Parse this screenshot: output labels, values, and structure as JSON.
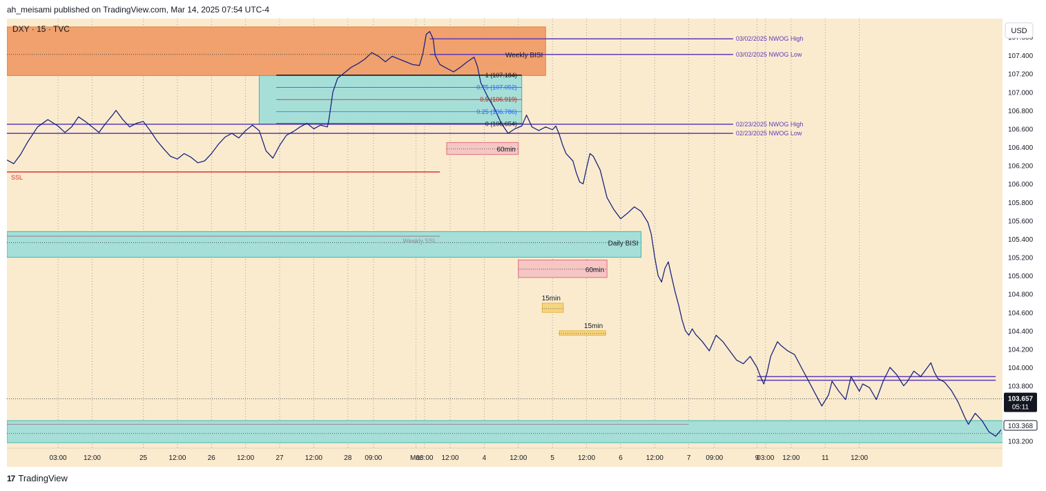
{
  "header": {
    "publish_line": "ah_meisami published on TradingView.com, Mar 14, 2025 07:54 UTC-4"
  },
  "footer": {
    "brand": "TradingView",
    "logo": "tradingview-logo-icon"
  },
  "chart_data": {
    "type": "line",
    "symbol_label": "DXY · 15 · TVC",
    "currency_button": "USD",
    "x_ticks": [
      {
        "label": "03:00",
        "t": 0.75
      },
      {
        "label": "12:00",
        "t": 1.25
      },
      {
        "label": "25",
        "t": 2
      },
      {
        "label": "12:00",
        "t": 2.5
      },
      {
        "label": "26",
        "t": 3
      },
      {
        "label": "12:00",
        "t": 3.5
      },
      {
        "label": "27",
        "t": 4
      },
      {
        "label": "12:00",
        "t": 4.5
      },
      {
        "label": "28",
        "t": 5
      },
      {
        "label": "09:00",
        "t": 5.375
      },
      {
        "label": "Mar",
        "t": 6
      },
      {
        "label": "03:00",
        "t": 6.125
      },
      {
        "label": "12:00",
        "t": 6.5
      },
      {
        "label": "4",
        "t": 7
      },
      {
        "label": "12:00",
        "t": 7.5
      },
      {
        "label": "5",
        "t": 8
      },
      {
        "label": "12:00",
        "t": 8.5
      },
      {
        "label": "6",
        "t": 9
      },
      {
        "label": "12:00",
        "t": 9.5
      },
      {
        "label": "7",
        "t": 10
      },
      {
        "label": "09:00",
        "t": 10.375
      },
      {
        "label": "9",
        "t": 11
      },
      {
        "label": "03:00",
        "t": 11.125
      },
      {
        "label": "12:00",
        "t": 11.5
      },
      {
        "label": "11",
        "t": 12
      },
      {
        "label": "12:00",
        "t": 12.5
      }
    ],
    "y_ticks": [
      "107.600",
      "107.400",
      "107.200",
      "107.000",
      "106.800",
      "106.600",
      "106.400",
      "106.200",
      "106.000",
      "105.800",
      "105.600",
      "105.400",
      "105.200",
      "105.000",
      "104.800",
      "104.600",
      "104.400",
      "104.200",
      "104.000",
      "103.800",
      "103.200"
    ],
    "y_range": [
      103.12,
      107.8
    ],
    "price_path": [
      [
        0.0,
        106.26
      ],
      [
        0.1,
        106.22
      ],
      [
        0.2,
        106.32
      ],
      [
        0.3,
        106.45
      ],
      [
        0.45,
        106.62
      ],
      [
        0.6,
        106.7
      ],
      [
        0.75,
        106.63
      ],
      [
        0.85,
        106.56
      ],
      [
        0.95,
        106.62
      ],
      [
        1.05,
        106.73
      ],
      [
        1.15,
        106.68
      ],
      [
        1.25,
        106.62
      ],
      [
        1.35,
        106.56
      ],
      [
        1.45,
        106.66
      ],
      [
        1.55,
        106.75
      ],
      [
        1.6,
        106.8
      ],
      [
        1.7,
        106.7
      ],
      [
        1.8,
        106.62
      ],
      [
        1.9,
        106.66
      ],
      [
        2.0,
        106.68
      ],
      [
        2.1,
        106.58
      ],
      [
        2.2,
        106.47
      ],
      [
        2.3,
        106.38
      ],
      [
        2.4,
        106.3
      ],
      [
        2.5,
        106.27
      ],
      [
        2.6,
        106.33
      ],
      [
        2.7,
        106.29
      ],
      [
        2.8,
        106.23
      ],
      [
        2.9,
        106.25
      ],
      [
        3.0,
        106.33
      ],
      [
        3.1,
        106.43
      ],
      [
        3.2,
        106.51
      ],
      [
        3.3,
        106.55
      ],
      [
        3.4,
        106.5
      ],
      [
        3.5,
        106.58
      ],
      [
        3.6,
        106.64
      ],
      [
        3.7,
        106.58
      ],
      [
        3.8,
        106.36
      ],
      [
        3.9,
        106.28
      ],
      [
        4.0,
        106.42
      ],
      [
        4.1,
        106.53
      ],
      [
        4.2,
        106.57
      ],
      [
        4.3,
        106.62
      ],
      [
        4.4,
        106.66
      ],
      [
        4.5,
        106.6
      ],
      [
        4.6,
        106.64
      ],
      [
        4.7,
        106.62
      ],
      [
        4.72,
        106.69
      ],
      [
        4.78,
        107.0
      ],
      [
        4.85,
        107.15
      ],
      [
        4.95,
        107.21
      ],
      [
        5.05,
        107.27
      ],
      [
        5.15,
        107.31
      ],
      [
        5.25,
        107.36
      ],
      [
        5.35,
        107.43
      ],
      [
        5.45,
        107.39
      ],
      [
        5.55,
        107.33
      ],
      [
        5.65,
        107.39
      ],
      [
        5.75,
        107.36
      ],
      [
        5.85,
        107.33
      ],
      [
        5.95,
        107.3
      ],
      [
        6.05,
        107.29
      ],
      [
        6.1,
        107.42
      ],
      [
        6.15,
        107.63
      ],
      [
        6.2,
        107.66
      ],
      [
        6.25,
        107.58
      ],
      [
        6.28,
        107.4
      ],
      [
        6.35,
        107.3
      ],
      [
        6.45,
        107.26
      ],
      [
        6.55,
        107.22
      ],
      [
        6.65,
        107.27
      ],
      [
        6.75,
        107.33
      ],
      [
        6.85,
        107.38
      ],
      [
        6.9,
        107.28
      ],
      [
        6.95,
        107.1
      ],
      [
        7.05,
        106.95
      ],
      [
        7.15,
        106.82
      ],
      [
        7.25,
        106.66
      ],
      [
        7.35,
        106.55
      ],
      [
        7.45,
        106.6
      ],
      [
        7.55,
        106.63
      ],
      [
        7.62,
        106.75
      ],
      [
        7.7,
        106.62
      ],
      [
        7.8,
        106.58
      ],
      [
        7.9,
        106.62
      ],
      [
        8.0,
        106.59
      ],
      [
        8.05,
        106.63
      ],
      [
        8.1,
        106.54
      ],
      [
        8.15,
        106.42
      ],
      [
        8.2,
        106.33
      ],
      [
        8.3,
        106.25
      ],
      [
        8.35,
        106.12
      ],
      [
        8.4,
        106.02
      ],
      [
        8.45,
        106.0
      ],
      [
        8.5,
        106.17
      ],
      [
        8.55,
        106.33
      ],
      [
        8.6,
        106.3
      ],
      [
        8.7,
        106.15
      ],
      [
        8.8,
        105.85
      ],
      [
        8.9,
        105.72
      ],
      [
        9.0,
        105.62
      ],
      [
        9.1,
        105.68
      ],
      [
        9.2,
        105.75
      ],
      [
        9.3,
        105.7
      ],
      [
        9.4,
        105.58
      ],
      [
        9.45,
        105.45
      ],
      [
        9.5,
        105.2
      ],
      [
        9.55,
        105.0
      ],
      [
        9.6,
        104.93
      ],
      [
        9.65,
        105.08
      ],
      [
        9.7,
        105.15
      ],
      [
        9.75,
        104.98
      ],
      [
        9.8,
        104.82
      ],
      [
        9.85,
        104.68
      ],
      [
        9.9,
        104.52
      ],
      [
        9.95,
        104.4
      ],
      [
        10.0,
        104.35
      ],
      [
        10.05,
        104.42
      ],
      [
        10.1,
        104.36
      ],
      [
        10.2,
        104.28
      ],
      [
        10.3,
        104.18
      ],
      [
        10.4,
        104.35
      ],
      [
        10.5,
        104.28
      ],
      [
        10.6,
        104.18
      ],
      [
        10.7,
        104.08
      ],
      [
        10.8,
        104.04
      ],
      [
        10.9,
        104.12
      ],
      [
        11.0,
        104.0
      ],
      [
        11.05,
        103.9
      ],
      [
        11.1,
        103.82
      ],
      [
        11.15,
        103.95
      ],
      [
        11.2,
        104.12
      ],
      [
        11.3,
        104.28
      ],
      [
        11.35,
        104.24
      ],
      [
        11.45,
        104.18
      ],
      [
        11.55,
        104.14
      ],
      [
        11.65,
        104.0
      ],
      [
        11.75,
        103.86
      ],
      [
        11.85,
        103.72
      ],
      [
        11.95,
        103.58
      ],
      [
        12.05,
        103.7
      ],
      [
        12.1,
        103.85
      ],
      [
        12.2,
        103.74
      ],
      [
        12.3,
        103.65
      ],
      [
        12.38,
        103.9
      ],
      [
        12.44,
        103.82
      ],
      [
        12.5,
        103.74
      ],
      [
        12.55,
        103.82
      ],
      [
        12.65,
        103.78
      ],
      [
        12.75,
        103.65
      ],
      [
        12.85,
        103.85
      ],
      [
        12.95,
        104.0
      ],
      [
        13.05,
        103.92
      ],
      [
        13.15,
        103.8
      ],
      [
        13.2,
        103.84
      ],
      [
        13.3,
        103.96
      ],
      [
        13.4,
        103.9
      ],
      [
        13.5,
        104.0
      ],
      [
        13.55,
        104.05
      ],
      [
        13.6,
        103.95
      ],
      [
        13.65,
        103.88
      ],
      [
        13.75,
        103.84
      ],
      [
        13.85,
        103.75
      ],
      [
        13.95,
        103.62
      ],
      [
        14.05,
        103.45
      ],
      [
        14.1,
        103.38
      ],
      [
        14.2,
        103.5
      ],
      [
        14.3,
        103.42
      ],
      [
        14.4,
        103.3
      ],
      [
        14.5,
        103.25
      ],
      [
        14.58,
        103.32
      ]
    ],
    "zones": [
      {
        "name": "weekly-bisi-zone",
        "label": "Weekly BISI",
        "t0": 0.0,
        "t1": 7.9,
        "top": 107.71,
        "bottom": 107.18,
        "color": "#ef9d68",
        "border": "#e67c39",
        "dotted_at": 107.41
      },
      {
        "name": "fib-zone",
        "label": "",
        "t0": 3.7,
        "t1": 7.55,
        "top": 107.18,
        "bottom": 106.65,
        "color": "#a1ded8",
        "border": "#3fb6ad"
      },
      {
        "name": "daily-bisi-zone",
        "label": "Daily BISI",
        "t0": 0.0,
        "t1": 9.3,
        "top": 105.48,
        "bottom": 105.2,
        "color": "#a1ded8",
        "border": "#3fb6ad",
        "dotted_at": 105.36
      },
      {
        "name": "fvg-60min-1",
        "label": "60min",
        "t0": 6.45,
        "t1": 7.5,
        "top": 106.45,
        "bottom": 106.32,
        "color": "#f5c4c4",
        "border": "#e06d7b",
        "dotted_at": 106.38
      },
      {
        "name": "fvg-60min-2",
        "label": "60min",
        "t0": 7.5,
        "t1": 8.8,
        "top": 105.17,
        "bottom": 104.98,
        "color": "#f5c4c4",
        "border": "#e06d7b",
        "dotted_at": 105.07
      },
      {
        "name": "fvg-15min-1",
        "label": "15min",
        "t0": 7.85,
        "t1": 8.16,
        "top": 104.7,
        "bottom": 104.6,
        "color": "#f7d37a",
        "border": "#e7b33f",
        "dotted_at": 104.64
      },
      {
        "name": "fvg-15min-2",
        "label": "15min",
        "t0": 8.1,
        "t1": 8.78,
        "top": 104.4,
        "bottom": 104.35,
        "color": "#f7d37a",
        "border": "#e7b33f",
        "dotted_at": 104.37
      },
      {
        "name": "weekly-ssl-zone",
        "label": "Weekly SSL",
        "t0": 0.0,
        "t1": 15.2,
        "top": 103.42,
        "bottom": 103.18,
        "color": "#a1ded8",
        "border": "#3fb6ad",
        "dotted_at": 103.28
      }
    ],
    "fib_levels": [
      {
        "label": "1 (107.184)",
        "value": 107.184,
        "color": "#131722"
      },
      {
        "label": "0.75 (107.052)",
        "value": 107.052,
        "color": "#2962ff"
      },
      {
        "label": "0.5 (106.919)",
        "value": 106.919,
        "color": "#b71c1c"
      },
      {
        "label": "0.25 (106.786)",
        "value": 106.786,
        "color": "#2962ff"
      },
      {
        "label": "0 (106.654)",
        "value": 106.654,
        "color": "#131722"
      }
    ],
    "nwog_lines": [
      {
        "label": "03/02/2025 NWOG High",
        "value": 107.58,
        "t0": 6.2,
        "t1": 10.65,
        "color": "#5b3ab8"
      },
      {
        "label": "03/02/2025 NWOG Low",
        "value": 107.41,
        "t0": 6.2,
        "t1": 10.65,
        "color": "#5b3ab8"
      },
      {
        "label": "02/23/2025 NWOG High",
        "value": 106.65,
        "t0": 0.0,
        "t1": 10.65,
        "color": "#5b3ab8"
      },
      {
        "label": "02/23/2025 NWOG Low",
        "value": 106.55,
        "t0": 0.0,
        "t1": 10.65,
        "color": "#5b3ab8"
      }
    ],
    "late_lines": [
      {
        "value": 103.9,
        "t0": 11.0,
        "t1": 14.5,
        "color": "#5b3ab8"
      },
      {
        "value": 103.86,
        "t0": 11.0,
        "t1": 14.5,
        "color": "#5b3ab8"
      }
    ],
    "ssl_line": {
      "label": "SSL",
      "value": 106.13,
      "t0": 0.0,
      "t1": 6.35,
      "color": "#e03030"
    },
    "weekly_ssl_gray": [
      {
        "value": 105.43,
        "t0": 0.0,
        "t1": 6.35
      },
      {
        "value": 103.38,
        "t0": 0.0,
        "t1": 10.0
      }
    ],
    "current_price": {
      "label": "103.657",
      "countdown": "05:11",
      "value": 103.657
    },
    "marker_price": {
      "label": "103.368",
      "value": 103.368
    }
  }
}
